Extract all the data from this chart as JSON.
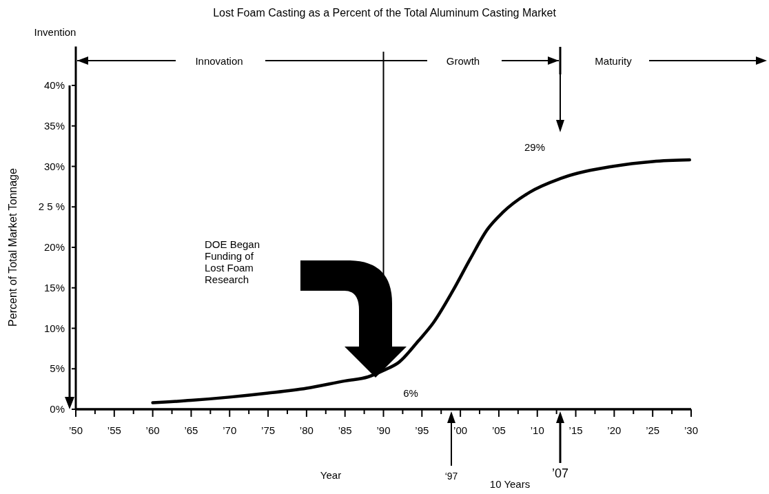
{
  "chart_data": {
    "type": "line",
    "title": "Lost Foam Casting as a Percent of the Total Aluminum Casting Market",
    "xlabel": "Year",
    "ylabel": "Percent of Total Market Tonnage",
    "x": [
      1960,
      1965,
      1970,
      1975,
      1980,
      1985,
      1988,
      1990,
      1992,
      1994.5,
      1996.5,
      1999,
      2001.3,
      2003.5,
      2005.5,
      2009,
      2013,
      2019.8,
      2025,
      2029.8
    ],
    "series": [
      {
        "color": "#000000",
        "values": [
          0.8,
          1.1,
          1.5,
          2.0,
          2.6,
          3.5,
          4.0,
          4.8,
          5.8,
          8.4,
          10.7,
          14.6,
          18.6,
          22.2,
          24.3,
          26.8,
          28.5,
          30.0,
          30.6,
          30.8
        ]
      }
    ],
    "xlim": [
      1950,
      2030
    ],
    "xticks": [
      {
        "value": 1950,
        "label": "’50"
      },
      {
        "value": 1952.5,
        "label": null
      },
      {
        "value": 1955,
        "label": "’55"
      },
      {
        "value": 1957.5,
        "label": null
      },
      {
        "value": 1960,
        "label": "’60"
      },
      {
        "value": 1962.5,
        "label": null
      },
      {
        "value": 1965,
        "label": "’65"
      },
      {
        "value": 1967.5,
        "label": null
      },
      {
        "value": 1970,
        "label": "’70"
      },
      {
        "value": 1972.5,
        "label": null
      },
      {
        "value": 1975,
        "label": "’75"
      },
      {
        "value": 1977.5,
        "label": null
      },
      {
        "value": 1980,
        "label": "’80"
      },
      {
        "value": 1982.5,
        "label": null
      },
      {
        "value": 1985,
        "label": "’85"
      },
      {
        "value": 1987.5,
        "label": null
      },
      {
        "value": 1990,
        "label": "’90"
      },
      {
        "value": 1992.5,
        "label": null
      },
      {
        "value": 1995,
        "label": "’95"
      },
      {
        "value": 1997.5,
        "label": null
      },
      {
        "value": 2000,
        "label": "’00"
      },
      {
        "value": 2002.5,
        "label": null
      },
      {
        "value": 2005,
        "label": "’05"
      },
      {
        "value": 2007.5,
        "label": null
      },
      {
        "value": 2010,
        "label": "’10"
      },
      {
        "value": 2012.5,
        "label": null
      },
      {
        "value": 2015,
        "label": "’15"
      },
      {
        "value": 2017.5,
        "label": null
      },
      {
        "value": 2020,
        "label": "’20"
      },
      {
        "value": 2022.5,
        "label": null
      },
      {
        "value": 2025,
        "label": "’25"
      },
      {
        "value": 2027.5,
        "label": null
      },
      {
        "value": 2030,
        "label": "’30"
      }
    ],
    "ylim": [
      0,
      44.8
    ],
    "yticks": [
      {
        "value": 0,
        "label": "0%"
      },
      {
        "value": 5,
        "label": "5%"
      },
      {
        "value": 10,
        "label": "10%"
      },
      {
        "value": 15,
        "label": "15%"
      },
      {
        "value": 20,
        "label": "20%"
      },
      {
        "value": 25,
        "label": "2 5 %"
      },
      {
        "value": 30,
        "label": "30%"
      },
      {
        "value": 35,
        "label": "35%"
      },
      {
        "value": 40,
        "label": "40%"
      }
    ],
    "ref_lines": [
      {
        "axis": "x",
        "value": 1990,
        "label": null
      }
    ],
    "annotations": [
      "Invention",
      "Innovation",
      "Growth",
      "Maturity",
      "DOE Began Funding of Lost Foam Research",
      "29%",
      "6%",
      "‘97",
      "10 Years",
      "’07"
    ],
    "grid": false,
    "marker": "none",
    "line_style": "solid"
  }
}
